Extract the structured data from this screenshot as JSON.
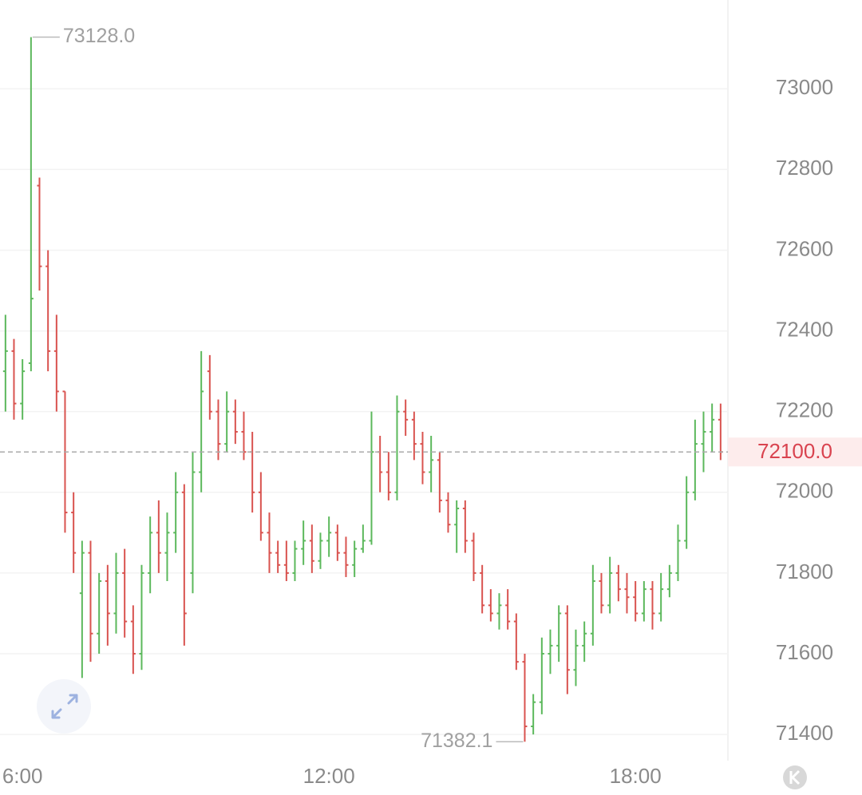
{
  "chart_data": {
    "type": "ohlc",
    "ylim": [
      71335,
      73220
    ],
    "yticks": [
      71400,
      71600,
      71800,
      72000,
      72200,
      72400,
      72600,
      72800,
      73000
    ],
    "xlim": [
      5.56,
      19.81
    ],
    "xticks": [
      {
        "value": 6,
        "label": "6:00"
      },
      {
        "value": 12,
        "label": "12:00"
      },
      {
        "value": 18,
        "label": "18:00"
      }
    ],
    "grid": true,
    "up_color": "#5cb85c",
    "down_color": "#d9534f",
    "x": [
      5.667,
      5.833,
      6,
      6.167,
      6.333,
      6.5,
      6.667,
      6.833,
      7,
      7.167,
      7.333,
      7.5,
      7.667,
      7.833,
      8,
      8.167,
      8.333,
      8.5,
      8.667,
      8.833,
      9,
      9.167,
      9.333,
      9.5,
      9.667,
      9.833,
      10,
      10.167,
      10.333,
      10.5,
      10.667,
      10.833,
      11,
      11.167,
      11.333,
      11.5,
      11.667,
      11.833,
      12,
      12.167,
      12.333,
      12.5,
      12.667,
      12.833,
      13,
      13.167,
      13.333,
      13.5,
      13.667,
      13.833,
      14,
      14.167,
      14.333,
      14.5,
      14.667,
      14.833,
      15,
      15.167,
      15.333,
      15.5,
      15.667,
      15.833,
      16,
      16.167,
      16.333,
      16.5,
      16.667,
      16.833,
      17,
      17.167,
      17.333,
      17.5,
      17.667,
      17.833,
      18,
      18.167,
      18.333,
      18.5,
      18.667,
      18.833,
      19,
      19.167,
      19.333,
      19.5,
      19.667
    ],
    "ohlc": [
      [
        72300,
        72440,
        72200,
        72350
      ],
      [
        72350,
        72380,
        72180,
        72220
      ],
      [
        72220,
        72330,
        72180,
        72300
      ],
      [
        72320,
        73128,
        72300,
        72480
      ],
      [
        72760,
        72780,
        72500,
        72560
      ],
      [
        72560,
        72600,
        72300,
        72350
      ],
      [
        72350,
        72440,
        72200,
        72250
      ],
      [
        72250,
        72250,
        71900,
        71950
      ],
      [
        71950,
        72000,
        71800,
        71850
      ],
      [
        71750,
        71880,
        71540,
        71850
      ],
      [
        71850,
        71880,
        71580,
        71650
      ],
      [
        71650,
        71800,
        71600,
        71780
      ],
      [
        71780,
        71820,
        71620,
        71700
      ],
      [
        71700,
        71850,
        71650,
        71800
      ],
      [
        71800,
        71860,
        71640,
        71680
      ],
      [
        71680,
        71720,
        71550,
        71600
      ],
      [
        71600,
        71820,
        71560,
        71800
      ],
      [
        71800,
        71940,
        71750,
        71900
      ],
      [
        71900,
        71980,
        71800,
        71850
      ],
      [
        71850,
        71950,
        71780,
        71900
      ],
      [
        71900,
        72050,
        71850,
        72000
      ],
      [
        72000,
        72020,
        71620,
        71700
      ],
      [
        71800,
        72100,
        71750,
        72050
      ],
      [
        72050,
        72350,
        72000,
        72250
      ],
      [
        72300,
        72340,
        72180,
        72200
      ],
      [
        72200,
        72230,
        72080,
        72120
      ],
      [
        72120,
        72250,
        72100,
        72200
      ],
      [
        72200,
        72230,
        72120,
        72150
      ],
      [
        72150,
        72200,
        72080,
        72100
      ],
      [
        72100,
        72150,
        71950,
        72000
      ],
      [
        72000,
        72050,
        71880,
        71900
      ],
      [
        71900,
        71950,
        71800,
        71850
      ],
      [
        71850,
        71880,
        71800,
        71820
      ],
      [
        71820,
        71880,
        71780,
        71800
      ],
      [
        71800,
        71880,
        71780,
        71860
      ],
      [
        71860,
        71930,
        71820,
        71880
      ],
      [
        71880,
        71920,
        71800,
        71830
      ],
      [
        71830,
        71900,
        71810,
        71880
      ],
      [
        71880,
        71940,
        71840,
        71900
      ],
      [
        71900,
        71920,
        71830,
        71850
      ],
      [
        71850,
        71890,
        71790,
        71820
      ],
      [
        71820,
        71880,
        71790,
        71860
      ],
      [
        71860,
        71920,
        71850,
        71880
      ],
      [
        71880,
        72200,
        71870,
        72100
      ],
      [
        72100,
        72140,
        72000,
        72050
      ],
      [
        72050,
        72100,
        71980,
        72000
      ],
      [
        72000,
        72240,
        71980,
        72200
      ],
      [
        72200,
        72230,
        72140,
        72180
      ],
      [
        72180,
        72200,
        72080,
        72120
      ],
      [
        72120,
        72150,
        72020,
        72050
      ],
      [
        72050,
        72140,
        72000,
        72080
      ],
      [
        72080,
        72100,
        71950,
        71980
      ],
      [
        71980,
        72000,
        71900,
        71920
      ],
      [
        71920,
        71980,
        71850,
        71960
      ],
      [
        71960,
        71980,
        71850,
        71880
      ],
      [
        71880,
        71900,
        71780,
        71800
      ],
      [
        71800,
        71820,
        71700,
        71720
      ],
      [
        71720,
        71760,
        71680,
        71700
      ],
      [
        71700,
        71750,
        71660,
        71720
      ],
      [
        71720,
        71760,
        71660,
        71680
      ],
      [
        71680,
        71700,
        71560,
        71580
      ],
      [
        71580,
        71600,
        71382.1,
        71420
      ],
      [
        71420,
        71500,
        71400,
        71480
      ],
      [
        71480,
        71640,
        71450,
        71600
      ],
      [
        71600,
        71660,
        71550,
        71620
      ],
      [
        71620,
        71720,
        71580,
        71700
      ],
      [
        71700,
        71720,
        71500,
        71560
      ],
      [
        71560,
        71660,
        71520,
        71620
      ],
      [
        71620,
        71680,
        71580,
        71650
      ],
      [
        71650,
        71820,
        71620,
        71780
      ],
      [
        71780,
        71800,
        71700,
        71720
      ],
      [
        71720,
        71840,
        71700,
        71800
      ],
      [
        71800,
        71820,
        71730,
        71760
      ],
      [
        71760,
        71800,
        71700,
        71740
      ],
      [
        71740,
        71780,
        71680,
        71700
      ],
      [
        71700,
        71780,
        71680,
        71760
      ],
      [
        71760,
        71780,
        71660,
        71700
      ],
      [
        71700,
        71800,
        71680,
        71760
      ],
      [
        71760,
        71820,
        71740,
        71800
      ],
      [
        71800,
        71920,
        71780,
        71880
      ],
      [
        71880,
        72040,
        71860,
        72000
      ],
      [
        72000,
        72180,
        71980,
        72120
      ],
      [
        72120,
        72200,
        72050,
        72150
      ],
      [
        72150,
        72220,
        72100,
        72180
      ],
      [
        72180,
        72220,
        72080,
        72100
      ]
    ],
    "annotations": {
      "high": {
        "value": 73128,
        "label": "73128.0"
      },
      "low": {
        "value": 71382.1,
        "label": "71382.1"
      },
      "last": {
        "value": 72100,
        "label": "72100.0"
      }
    }
  }
}
